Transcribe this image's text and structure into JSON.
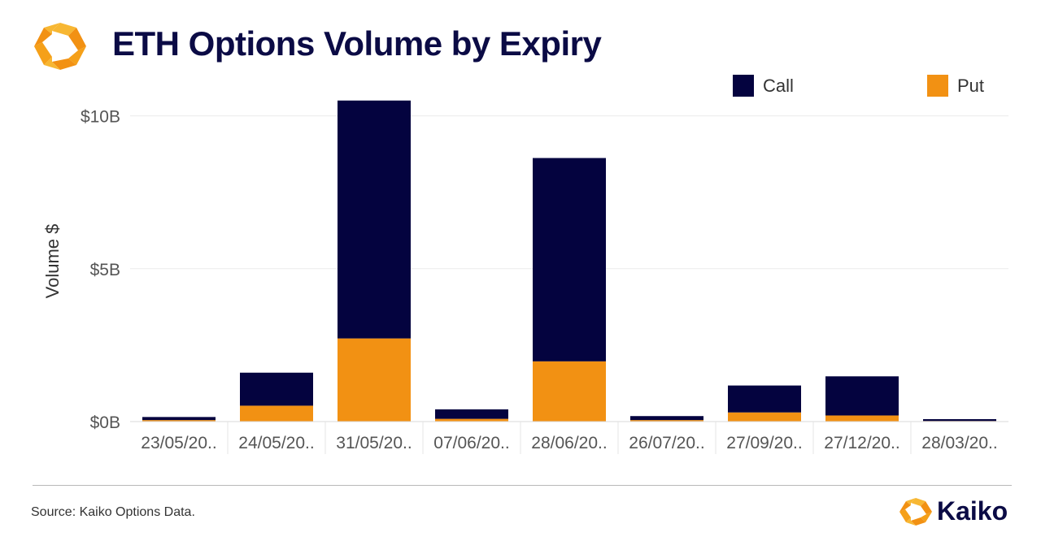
{
  "page": {
    "title": "ETH Options Volume by Expiry",
    "source": "Source: Kaiko Options Data.",
    "brand": "Kaiko"
  },
  "colors": {
    "call": "#04033f",
    "put": "#f29113",
    "title": "#0b0b45",
    "grid": "#ececec",
    "axis_text": "#555555",
    "logo_orange": "#f5a019"
  },
  "chart_data": {
    "type": "bar",
    "stacked": true,
    "ylabel": "Volume $",
    "xlabel": "",
    "ylim": [
      0,
      10.6
    ],
    "yticks": [
      {
        "value": 0,
        "label": "$0B"
      },
      {
        "value": 5,
        "label": "$5B"
      },
      {
        "value": 10,
        "label": "$10B"
      }
    ],
    "categories": [
      "23/05/20..",
      "24/05/20..",
      "31/05/20..",
      "07/06/20..",
      "28/06/20..",
      "26/07/20..",
      "27/09/20..",
      "27/12/20..",
      "28/03/20.."
    ],
    "series": [
      {
        "name": "Put",
        "values": [
          0.05,
          0.52,
          2.72,
          0.09,
          1.97,
          0.05,
          0.3,
          0.2,
          0.02
        ]
      },
      {
        "name": "Call",
        "values": [
          0.1,
          1.08,
          7.78,
          0.31,
          6.65,
          0.13,
          0.88,
          1.28,
          0.06
        ]
      }
    ],
    "legend": {
      "position": "top-right",
      "items": [
        "Call",
        "Put"
      ]
    },
    "grid": true
  }
}
